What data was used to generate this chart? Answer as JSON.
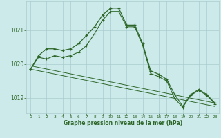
{
  "title": "Graphe pression niveau de la mer (hPa)",
  "background_color": "#cceaea",
  "grid_color": "#aacccc",
  "line_color": "#2d6628",
  "xlim": [
    -0.5,
    23.5
  ],
  "ylim": [
    1018.55,
    1021.85
  ],
  "yticks": [
    1019,
    1020,
    1021
  ],
  "xticks": [
    0,
    1,
    2,
    3,
    4,
    5,
    6,
    7,
    8,
    9,
    10,
    11,
    12,
    13,
    14,
    15,
    16,
    17,
    18,
    19,
    20,
    21,
    22,
    23
  ],
  "series_main": {
    "x": [
      0,
      1,
      2,
      3,
      4,
      5,
      6,
      7,
      8,
      9,
      10,
      11,
      12,
      13,
      14,
      15,
      16,
      17,
      18,
      19,
      20,
      21,
      22,
      23
    ],
    "y": [
      1019.85,
      1020.25,
      1020.45,
      1020.45,
      1020.4,
      1020.45,
      1020.6,
      1020.85,
      1021.1,
      1021.45,
      1021.65,
      1021.65,
      1021.15,
      1021.15,
      1020.6,
      1019.8,
      1019.7,
      1019.55,
      1019.1,
      1018.75,
      1019.1,
      1019.25,
      1019.1,
      1018.85
    ]
  },
  "series_secondary": {
    "x": [
      0,
      1,
      2,
      3,
      4,
      5,
      6,
      7,
      8,
      9,
      10,
      11,
      12,
      13,
      14,
      15,
      16,
      17,
      18,
      19,
      20,
      21,
      22,
      23
    ],
    "y": [
      1019.85,
      1020.2,
      1020.15,
      1020.25,
      1020.2,
      1020.25,
      1020.35,
      1020.55,
      1020.9,
      1021.3,
      1021.55,
      1021.55,
      1021.1,
      1021.1,
      1020.55,
      1019.72,
      1019.63,
      1019.5,
      1018.98,
      1018.72,
      1019.08,
      1019.22,
      1019.08,
      1018.82
    ]
  },
  "series_linear1": {
    "x": [
      0,
      23
    ],
    "y": [
      1019.95,
      1018.85
    ]
  },
  "series_linear2": {
    "x": [
      0,
      23
    ],
    "y": [
      1019.85,
      1018.75
    ]
  }
}
